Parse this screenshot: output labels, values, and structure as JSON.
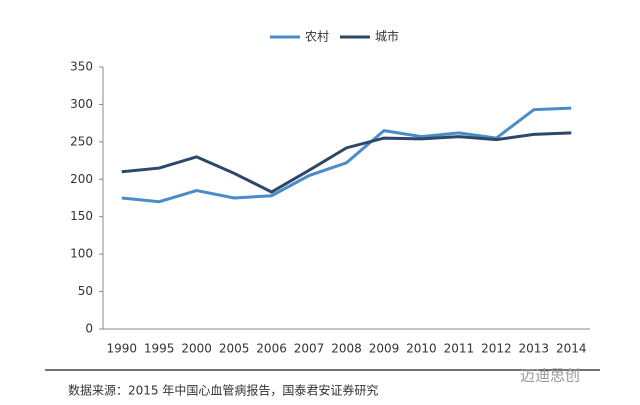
{
  "chart_data": {
    "type": "line",
    "categories": [
      "1990",
      "1995",
      "2000",
      "2005",
      "2006",
      "2007",
      "2008",
      "2009",
      "2010",
      "2011",
      "2012",
      "2013",
      "2014"
    ],
    "series": [
      {
        "name": "农村",
        "color": "#4a8cc7",
        "values": [
          175,
          170,
          185,
          175,
          178,
          205,
          222,
          265,
          257,
          262,
          255,
          293,
          295
        ]
      },
      {
        "name": "城市",
        "color": "#2c4866",
        "values": [
          210,
          215,
          230,
          208,
          183,
          212,
          242,
          255,
          254,
          257,
          253,
          260,
          262
        ]
      }
    ],
    "ylim": [
      0,
      350
    ],
    "yticks": [
      0,
      50,
      100,
      150,
      200,
      250,
      300,
      350
    ],
    "grid": false,
    "source": "数据来源：2015 年中国心血管病报告，国泰君安证券研究",
    "watermark": "迈迪思创"
  }
}
